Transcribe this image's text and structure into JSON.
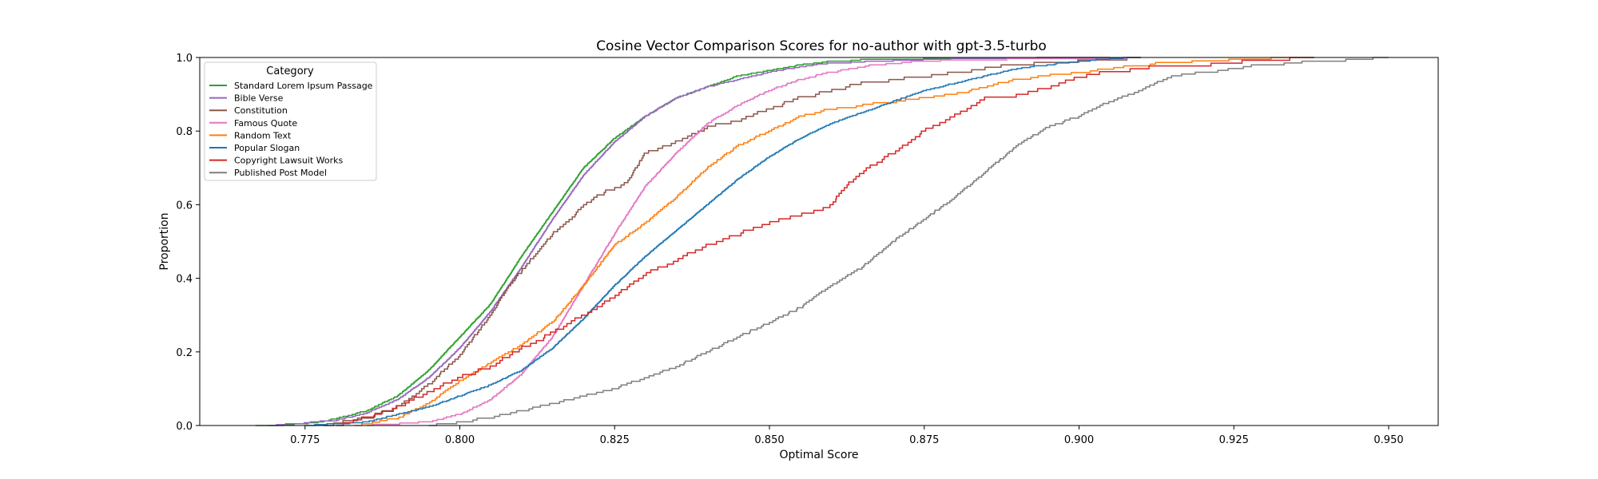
{
  "chart_data": {
    "type": "line",
    "subtype": "empirical-cdf-step",
    "title": "Cosine Vector Comparison Scores for no-author with gpt-3.5-turbo",
    "xlabel": "Optimal Score",
    "ylabel": "Proportion",
    "xlim": [
      0.758,
      0.958
    ],
    "ylim": [
      0.0,
      1.0
    ],
    "xticks": [
      0.775,
      0.8,
      0.825,
      0.85,
      0.875,
      0.9,
      0.925,
      0.95
    ],
    "xtick_labels": [
      "0.775",
      "0.800",
      "0.825",
      "0.850",
      "0.875",
      "0.900",
      "0.925",
      "0.950"
    ],
    "yticks": [
      0.0,
      0.2,
      0.4,
      0.6,
      0.8,
      1.0
    ],
    "ytick_labels": [
      "0.0",
      "0.2",
      "0.4",
      "0.6",
      "0.8",
      "1.0"
    ],
    "grid": false,
    "legend": {
      "title": "Category",
      "placement": "top-left"
    },
    "series": [
      {
        "name": "Standard Lorem Ipsum Passage",
        "color": "#2ca02c",
        "steps": 400,
        "x": [
          0.767,
          0.775,
          0.78,
          0.785,
          0.79,
          0.795,
          0.8,
          0.805,
          0.81,
          0.815,
          0.82,
          0.825,
          0.83,
          0.835,
          0.84,
          0.845,
          0.85,
          0.855,
          0.86,
          0.865,
          0.87,
          0.88,
          0.89,
          0.9,
          0.905
        ],
        "y": [
          0.0,
          0.004,
          0.018,
          0.04,
          0.08,
          0.15,
          0.24,
          0.33,
          0.46,
          0.58,
          0.7,
          0.78,
          0.84,
          0.89,
          0.92,
          0.95,
          0.965,
          0.98,
          0.99,
          0.993,
          0.996,
          0.998,
          0.999,
          0.9995,
          1.0
        ]
      },
      {
        "name": "Bible Verse",
        "color": "#9467bd",
        "steps": 400,
        "x": [
          0.769,
          0.78,
          0.785,
          0.79,
          0.795,
          0.8,
          0.805,
          0.81,
          0.815,
          0.82,
          0.825,
          0.83,
          0.835,
          0.84,
          0.845,
          0.85,
          0.855,
          0.86,
          0.87,
          0.88,
          0.89,
          0.9,
          0.905
        ],
        "y": [
          0.0,
          0.014,
          0.034,
          0.07,
          0.13,
          0.21,
          0.31,
          0.43,
          0.56,
          0.68,
          0.77,
          0.84,
          0.89,
          0.92,
          0.94,
          0.96,
          0.975,
          0.985,
          0.992,
          0.996,
          0.998,
          0.9995,
          1.0
        ]
      },
      {
        "name": "Constitution",
        "color": "#8c564b",
        "steps": 150,
        "x": [
          0.778,
          0.785,
          0.79,
          0.795,
          0.8,
          0.805,
          0.808,
          0.81,
          0.815,
          0.818,
          0.82,
          0.823,
          0.827,
          0.83,
          0.835,
          0.84,
          0.845,
          0.85,
          0.855,
          0.86,
          0.865,
          0.87,
          0.875,
          0.88,
          0.885,
          0.89,
          0.9,
          0.91
        ],
        "y": [
          0.0,
          0.02,
          0.05,
          0.11,
          0.19,
          0.3,
          0.38,
          0.42,
          0.52,
          0.56,
          0.6,
          0.63,
          0.66,
          0.74,
          0.77,
          0.81,
          0.83,
          0.86,
          0.89,
          0.91,
          0.93,
          0.94,
          0.95,
          0.96,
          0.97,
          0.98,
          0.99,
          1.0
        ]
      },
      {
        "name": "Famous Quote",
        "color": "#e377c2",
        "steps": 300,
        "x": [
          0.785,
          0.795,
          0.8,
          0.805,
          0.81,
          0.815,
          0.82,
          0.825,
          0.83,
          0.835,
          0.84,
          0.845,
          0.85,
          0.855,
          0.86,
          0.865,
          0.87,
          0.875,
          0.88,
          0.89,
          0.9,
          0.91
        ],
        "y": [
          0.0,
          0.01,
          0.03,
          0.07,
          0.14,
          0.24,
          0.38,
          0.52,
          0.65,
          0.74,
          0.82,
          0.87,
          0.91,
          0.94,
          0.96,
          0.975,
          0.985,
          0.99,
          0.994,
          0.997,
          0.999,
          1.0
        ]
      },
      {
        "name": "Random Text",
        "color": "#ff7f0e",
        "steps": 220,
        "x": [
          0.783,
          0.79,
          0.795,
          0.8,
          0.805,
          0.81,
          0.815,
          0.82,
          0.825,
          0.83,
          0.835,
          0.84,
          0.845,
          0.85,
          0.855,
          0.86,
          0.865,
          0.87,
          0.875,
          0.88,
          0.885,
          0.89,
          0.895,
          0.9,
          0.91,
          0.92,
          0.93,
          0.938
        ],
        "y": [
          0.0,
          0.02,
          0.06,
          0.12,
          0.17,
          0.22,
          0.28,
          0.38,
          0.49,
          0.55,
          0.62,
          0.7,
          0.76,
          0.8,
          0.84,
          0.86,
          0.87,
          0.88,
          0.89,
          0.9,
          0.92,
          0.94,
          0.95,
          0.96,
          0.98,
          0.99,
          0.997,
          1.0
        ]
      },
      {
        "name": "Popular Slogan",
        "color": "#1f77b4",
        "steps": 400,
        "x": [
          0.775,
          0.785,
          0.79,
          0.795,
          0.8,
          0.805,
          0.81,
          0.815,
          0.82,
          0.825,
          0.83,
          0.835,
          0.84,
          0.845,
          0.85,
          0.855,
          0.86,
          0.865,
          0.87,
          0.875,
          0.88,
          0.885,
          0.89,
          0.895,
          0.9,
          0.905,
          0.91
        ],
        "y": [
          0.0,
          0.01,
          0.03,
          0.05,
          0.08,
          0.11,
          0.15,
          0.21,
          0.29,
          0.38,
          0.46,
          0.53,
          0.6,
          0.67,
          0.73,
          0.78,
          0.82,
          0.85,
          0.88,
          0.91,
          0.93,
          0.95,
          0.97,
          0.98,
          0.99,
          0.997,
          1.0
        ]
      },
      {
        "name": "Copyright Lawsuit Works",
        "color": "#d62728",
        "steps": 130,
        "x": [
          0.78,
          0.785,
          0.79,
          0.795,
          0.8,
          0.805,
          0.81,
          0.815,
          0.82,
          0.825,
          0.83,
          0.835,
          0.84,
          0.845,
          0.85,
          0.855,
          0.86,
          0.863,
          0.866,
          0.87,
          0.875,
          0.88,
          0.885,
          0.89,
          0.895,
          0.9,
          0.905,
          0.91,
          0.92,
          0.93,
          0.938
        ],
        "y": [
          0.0,
          0.02,
          0.05,
          0.09,
          0.13,
          0.16,
          0.21,
          0.25,
          0.3,
          0.35,
          0.41,
          0.45,
          0.49,
          0.52,
          0.55,
          0.57,
          0.6,
          0.66,
          0.7,
          0.74,
          0.8,
          0.84,
          0.89,
          0.9,
          0.92,
          0.95,
          0.96,
          0.97,
          0.98,
          0.99,
          1.0
        ]
      },
      {
        "name": "Published Post Model",
        "color": "#7f7f7f",
        "steps": 200,
        "x": [
          0.795,
          0.805,
          0.81,
          0.815,
          0.82,
          0.825,
          0.83,
          0.835,
          0.84,
          0.845,
          0.85,
          0.855,
          0.86,
          0.865,
          0.87,
          0.875,
          0.88,
          0.885,
          0.89,
          0.895,
          0.9,
          0.905,
          0.91,
          0.915,
          0.92,
          0.925,
          0.93,
          0.935,
          0.94,
          0.945,
          0.95
        ],
        "y": [
          0.0,
          0.02,
          0.04,
          0.06,
          0.08,
          0.1,
          0.13,
          0.16,
          0.2,
          0.24,
          0.28,
          0.32,
          0.38,
          0.43,
          0.5,
          0.56,
          0.62,
          0.69,
          0.76,
          0.81,
          0.84,
          0.88,
          0.91,
          0.95,
          0.96,
          0.97,
          0.98,
          0.985,
          0.99,
          0.995,
          1.0
        ]
      }
    ]
  }
}
